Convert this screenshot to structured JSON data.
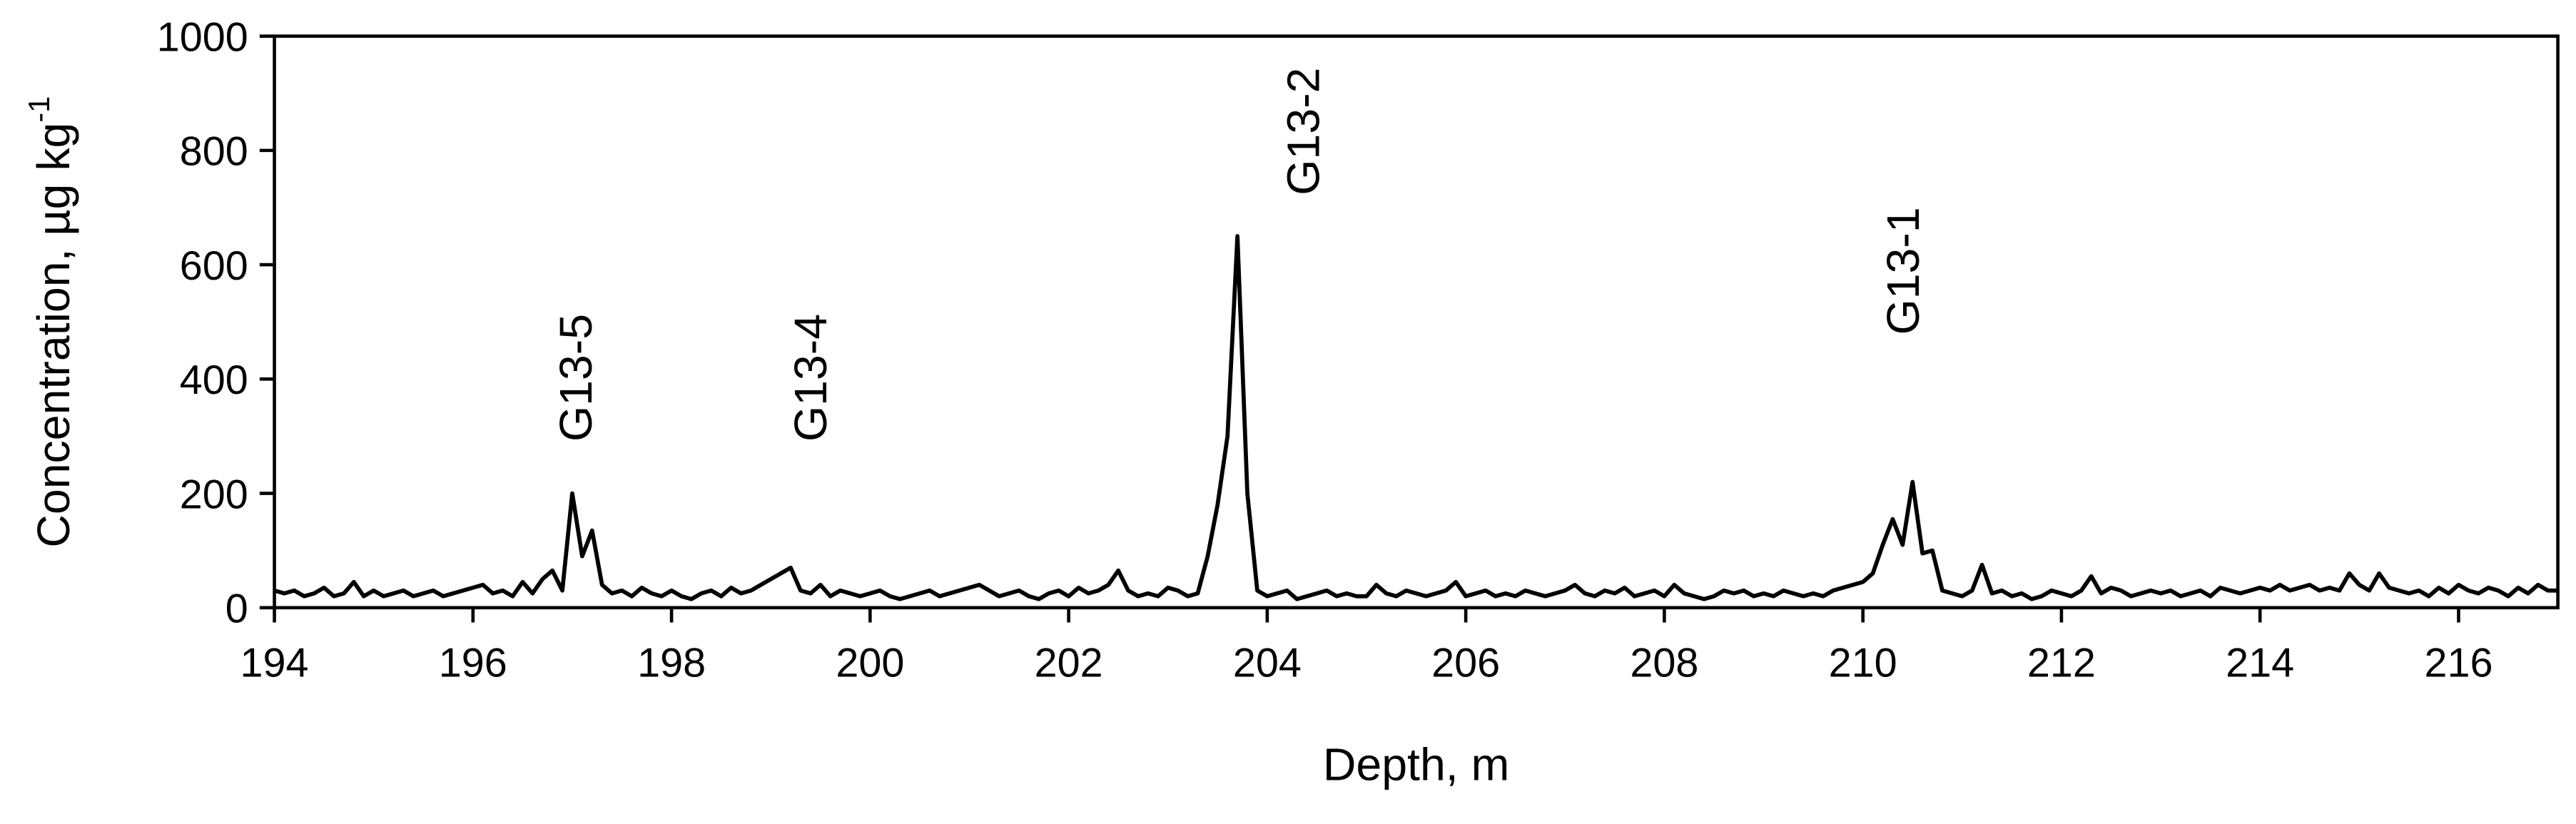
{
  "chart_data": {
    "type": "line",
    "xlabel": "Depth, m",
    "ylabel": "Concentration, µg kg",
    "ylabel_superscript": "-1",
    "annotations": [
      "G13-5",
      "G13-4",
      "G13-2",
      "G13-1"
    ],
    "xlim": [
      194,
      217
    ],
    "xticks": [
      194,
      196,
      198,
      200,
      202,
      204,
      206,
      208,
      210,
      212,
      214,
      216
    ],
    "ylim": [
      0,
      1000
    ],
    "yticks": [
      0,
      200,
      400,
      600,
      800,
      1000
    ],
    "series": [
      {
        "color": "#000000",
        "x": [
          194,
          194.1,
          194.2,
          194.3,
          194.4,
          194.5,
          194.6,
          194.7,
          194.8,
          194.9,
          195,
          195.1,
          195.2,
          195.3,
          195.4,
          195.5,
          195.6,
          195.7,
          195.8,
          195.9,
          196,
          196.1,
          196.2,
          196.3,
          196.4,
          196.5,
          196.6,
          196.7,
          196.8,
          196.9,
          197,
          197.1,
          197.2,
          197.3,
          197.4,
          197.5,
          197.6,
          197.7,
          197.8,
          197.9,
          198,
          198.1,
          198.2,
          198.3,
          198.4,
          198.5,
          198.6,
          198.7,
          198.8,
          198.9,
          199,
          199.1,
          199.2,
          199.3,
          199.4,
          199.5,
          199.6,
          199.7,
          199.8,
          199.9,
          200,
          200.1,
          200.2,
          200.3,
          200.4,
          200.5,
          200.6,
          200.7,
          200.8,
          200.9,
          201,
          201.1,
          201.2,
          201.3,
          201.4,
          201.5,
          201.6,
          201.7,
          201.8,
          201.9,
          202,
          202.1,
          202.2,
          202.3,
          202.4,
          202.5,
          202.6,
          202.7,
          202.8,
          202.9,
          203,
          203.1,
          203.2,
          203.3,
          203.4,
          203.5,
          203.6,
          203.7,
          203.8,
          203.9,
          204,
          204.1,
          204.2,
          204.3,
          204.4,
          204.5,
          204.6,
          204.7,
          204.8,
          204.9,
          205,
          205.1,
          205.2,
          205.3,
          205.4,
          205.5,
          205.6,
          205.7,
          205.8,
          205.9,
          206,
          206.1,
          206.2,
          206.3,
          206.4,
          206.5,
          206.6,
          206.7,
          206.8,
          206.9,
          207,
          207.1,
          207.2,
          207.3,
          207.4,
          207.5,
          207.6,
          207.7,
          207.8,
          207.9,
          208,
          208.1,
          208.2,
          208.3,
          208.4,
          208.5,
          208.6,
          208.7,
          208.8,
          208.9,
          209,
          209.1,
          209.2,
          209.3,
          209.4,
          209.5,
          209.6,
          209.7,
          209.8,
          209.9,
          210,
          210.1,
          210.2,
          210.3,
          210.4,
          210.5,
          210.6,
          210.7,
          210.8,
          210.9,
          211,
          211.1,
          211.2,
          211.3,
          211.4,
          211.5,
          211.6,
          211.7,
          211.8,
          211.9,
          212,
          212.1,
          212.2,
          212.3,
          212.4,
          212.5,
          212.6,
          212.7,
          212.8,
          212.9,
          213,
          213.1,
          213.2,
          213.3,
          213.4,
          213.5,
          213.6,
          213.7,
          213.8,
          213.9,
          214,
          214.1,
          214.2,
          214.3,
          214.4,
          214.5,
          214.6,
          214.7,
          214.8,
          214.9,
          215,
          215.1,
          215.2,
          215.3,
          215.4,
          215.5,
          215.6,
          215.7,
          215.8,
          215.9,
          216,
          216.1,
          216.2,
          216.3,
          216.4,
          216.5,
          216.6,
          216.7,
          216.8,
          216.9,
          217
        ],
        "values": [
          30,
          25,
          30,
          20,
          25,
          35,
          20,
          25,
          45,
          20,
          30,
          20,
          25,
          30,
          20,
          25,
          30,
          20,
          25,
          30,
          35,
          40,
          25,
          30,
          20,
          45,
          25,
          50,
          65,
          30,
          200,
          90,
          135,
          40,
          25,
          30,
          20,
          35,
          25,
          20,
          30,
          20,
          15,
          25,
          30,
          20,
          35,
          25,
          30,
          40,
          50,
          60,
          70,
          30,
          25,
          40,
          20,
          30,
          25,
          20,
          25,
          30,
          20,
          15,
          20,
          25,
          30,
          20,
          25,
          30,
          35,
          40,
          30,
          20,
          25,
          30,
          20,
          15,
          25,
          30,
          20,
          35,
          25,
          30,
          40,
          65,
          30,
          20,
          25,
          20,
          35,
          30,
          20,
          25,
          90,
          180,
          300,
          650,
          200,
          30,
          20,
          25,
          30,
          15,
          20,
          25,
          30,
          20,
          25,
          20,
          20,
          40,
          25,
          20,
          30,
          25,
          20,
          25,
          30,
          45,
          20,
          25,
          30,
          20,
          25,
          20,
          30,
          25,
          20,
          25,
          30,
          40,
          25,
          20,
          30,
          25,
          35,
          20,
          25,
          30,
          20,
          40,
          25,
          20,
          15,
          20,
          30,
          25,
          30,
          20,
          25,
          20,
          30,
          25,
          20,
          25,
          20,
          30,
          35,
          40,
          45,
          60,
          110,
          155,
          110,
          220,
          95,
          100,
          30,
          25,
          20,
          30,
          75,
          25,
          30,
          20,
          25,
          15,
          20,
          30,
          25,
          20,
          30,
          55,
          25,
          35,
          30,
          20,
          25,
          30,
          25,
          30,
          20,
          25,
          30,
          20,
          35,
          30,
          25,
          30,
          35,
          30,
          40,
          30,
          35,
          40,
          30,
          35,
          30,
          60,
          40,
          30,
          60,
          35,
          30,
          25,
          30,
          20,
          35,
          25,
          40,
          30,
          25,
          35,
          30,
          20,
          35,
          25,
          40,
          30,
          30
        ]
      }
    ]
  }
}
